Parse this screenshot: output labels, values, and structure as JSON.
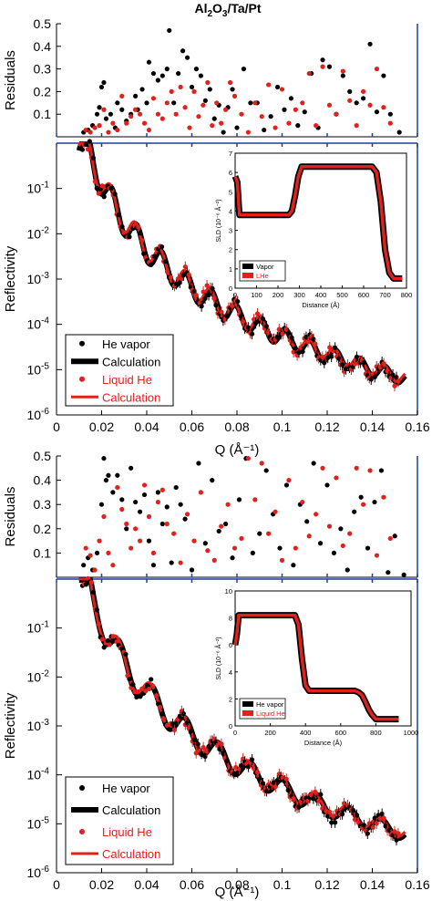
{
  "title_main": "Al",
  "title_sub1": "2",
  "title_mid": "O",
  "title_sub2": "3",
  "title_tail": "/Ta/Pt",
  "colors": {
    "black": "#000000",
    "red": "#e0211c",
    "axis_blue": "#1f3f9a"
  },
  "chart_data": [
    {
      "type": "scatter",
      "id": "top-residuals",
      "ylabel": "Residuals",
      "xlim": [
        0,
        0.16
      ],
      "ylim": [
        0,
        0.5
      ],
      "yticks": [
        {
          "v": 0.1,
          "label": "0.1"
        },
        {
          "v": 0.2,
          "label": "0.2"
        },
        {
          "v": 0.3,
          "label": "0.3"
        },
        {
          "v": 0.4,
          "label": "0.4"
        },
        {
          "v": 0.5,
          "label": "0.5"
        }
      ],
      "series": [
        {
          "color": "black",
          "x": [
            0.012,
            0.014,
            0.016,
            0.018,
            0.019,
            0.02,
            0.021,
            0.022,
            0.024,
            0.026,
            0.027,
            0.029,
            0.031,
            0.033,
            0.035,
            0.036,
            0.038,
            0.04,
            0.041,
            0.043,
            0.045,
            0.047,
            0.049,
            0.05,
            0.052,
            0.054,
            0.056,
            0.058,
            0.06,
            0.062,
            0.064,
            0.066,
            0.068,
            0.07,
            0.072,
            0.074,
            0.076,
            0.078,
            0.08,
            0.083,
            0.086,
            0.089,
            0.092,
            0.095,
            0.098,
            0.101,
            0.104,
            0.107,
            0.11,
            0.113,
            0.116,
            0.118,
            0.121,
            0.124,
            0.127,
            0.13,
            0.133,
            0.136,
            0.139,
            0.142,
            0.145,
            0.148,
            0.152
          ],
          "y": [
            0.02,
            0.03,
            0.05,
            0.1,
            0.13,
            0.22,
            0.24,
            0.08,
            0.1,
            0.04,
            0.15,
            0.12,
            0.07,
            0.1,
            0.18,
            0.12,
            0.21,
            0.15,
            0.33,
            0.28,
            0.25,
            0.27,
            0.3,
            0.47,
            0.15,
            0.28,
            0.38,
            0.35,
            0.22,
            0.3,
            0.27,
            0.16,
            0.21,
            0.08,
            0.14,
            0.02,
            0.13,
            0.21,
            0.04,
            0.3,
            0.15,
            0.15,
            0.03,
            0.09,
            0.22,
            0.12,
            0.17,
            0.05,
            0.11,
            0.28,
            0.04,
            0.34,
            0.31,
            0.1,
            0.27,
            0.2,
            0.15,
            0.17,
            0.41,
            0.11,
            0.27,
            0.1,
            0.02
          ]
        },
        {
          "color": "red",
          "x": [
            0.013,
            0.015,
            0.017,
            0.019,
            0.021,
            0.023,
            0.025,
            0.027,
            0.029,
            0.031,
            0.033,
            0.035,
            0.037,
            0.039,
            0.041,
            0.043,
            0.045,
            0.047,
            0.049,
            0.051,
            0.053,
            0.055,
            0.057,
            0.059,
            0.061,
            0.063,
            0.065,
            0.067,
            0.069,
            0.071,
            0.073,
            0.075,
            0.077,
            0.079,
            0.082,
            0.085,
            0.088,
            0.091,
            0.094,
            0.097,
            0.1,
            0.103,
            0.106,
            0.109,
            0.112,
            0.115,
            0.118,
            0.121,
            0.124,
            0.127,
            0.13,
            0.133,
            0.136,
            0.139,
            0.142,
            0.145,
            0.148
          ],
          "y": [
            0.03,
            0.02,
            0.04,
            0.05,
            0.12,
            0.02,
            0.06,
            0.03,
            0.18,
            0.06,
            0.09,
            0.12,
            0.1,
            0.06,
            0.03,
            0.17,
            0.1,
            0.08,
            0.15,
            0.2,
            0.1,
            0.22,
            0.13,
            0.04,
            0.2,
            0.09,
            0.14,
            0.24,
            0.05,
            0.15,
            0.06,
            0.12,
            0.24,
            0.18,
            0.1,
            0.02,
            0.15,
            0.09,
            0.23,
            0.04,
            0.21,
            0.06,
            0.12,
            0.15,
            0.28,
            0.05,
            0.31,
            0.14,
            0.1,
            0.29,
            0.16,
            0.05,
            0.2,
            0.14,
            0.3,
            0.13,
            0.06
          ]
        }
      ]
    },
    {
      "type": "line",
      "id": "top-reflectivity",
      "xlabel": "Q (Å⁻¹)",
      "ylabel": "Reflectivity",
      "xlim": [
        0,
        0.16
      ],
      "ylim_log": [
        -6,
        0
      ],
      "xticks": [
        "0",
        "0.02",
        "0.04",
        "0.06",
        "0.08",
        "0.1",
        "0.12",
        "0.14",
        "0.16"
      ],
      "yticks": [
        {
          "exp": -1,
          "label": "10",
          "sup": "-1"
        },
        {
          "exp": -2,
          "label": "10",
          "sup": "-2"
        },
        {
          "exp": -3,
          "label": "10",
          "sup": "-3"
        },
        {
          "exp": -4,
          "label": "10",
          "sup": "-4"
        },
        {
          "exp": -5,
          "label": "10",
          "sup": "-5"
        },
        {
          "exp": -6,
          "label": "10",
          "sup": "-6"
        }
      ],
      "legend": [
        "He vapor",
        "Calculation",
        "Liquid He",
        "Calculation"
      ],
      "legend_position": "bottom-left",
      "fringe_period": 0.011,
      "inset": {
        "xlabel": "Distance (Å)",
        "ylabel": "SLD (10⁻⁶ Å⁻²)",
        "xlim": [
          0,
          800
        ],
        "ylim": [
          0,
          7
        ],
        "xticks": [
          "0",
          "100",
          "200",
          "300",
          "400",
          "500",
          "600",
          "700",
          "800"
        ],
        "yticks": [
          "0",
          "1",
          "2",
          "3",
          "4",
          "5",
          "6",
          "7"
        ],
        "legend": [
          "Vapor",
          "LHe"
        ],
        "profile_x": [
          0,
          10,
          20,
          250,
          265,
          280,
          295,
          310,
          640,
          660,
          680,
          700,
          720,
          740,
          780
        ],
        "profile_y": [
          5.8,
          5.5,
          3.8,
          3.8,
          4.0,
          4.8,
          5.8,
          6.3,
          6.3,
          6.0,
          4.5,
          2.0,
          0.8,
          0.5,
          0.5
        ]
      }
    },
    {
      "type": "scatter",
      "id": "bottom-residuals",
      "ylabel": "Residuals",
      "xlim": [
        0,
        0.16
      ],
      "ylim": [
        0,
        0.5
      ],
      "yticks": [
        {
          "v": 0.1,
          "label": "0.1"
        },
        {
          "v": 0.2,
          "label": "0.2"
        },
        {
          "v": 0.3,
          "label": "0.3"
        },
        {
          "v": 0.4,
          "label": "0.4"
        },
        {
          "v": 0.5,
          "label": "0.5"
        }
      ],
      "series": [
        {
          "color": "black",
          "x": [
            0.012,
            0.014,
            0.016,
            0.018,
            0.02,
            0.021,
            0.022,
            0.023,
            0.025,
            0.027,
            0.029,
            0.031,
            0.033,
            0.035,
            0.037,
            0.039,
            0.041,
            0.043,
            0.045,
            0.047,
            0.049,
            0.051,
            0.053,
            0.055,
            0.057,
            0.06,
            0.063,
            0.066,
            0.069,
            0.072,
            0.075,
            0.078,
            0.081,
            0.084,
            0.087,
            0.09,
            0.093,
            0.096,
            0.099,
            0.102,
            0.105,
            0.108,
            0.111,
            0.114,
            0.117,
            0.12,
            0.123,
            0.126,
            0.129,
            0.132,
            0.135,
            0.138,
            0.141,
            0.144,
            0.147,
            0.15,
            0.154
          ],
          "y": [
            0.05,
            0.08,
            0.03,
            0.1,
            0.3,
            0.49,
            0.4,
            0.42,
            0.35,
            0.42,
            0.32,
            0.2,
            0.45,
            0.31,
            0.27,
            0.34,
            0.15,
            0.05,
            0.35,
            0.22,
            0.29,
            0.06,
            0.37,
            0.3,
            0.24,
            0.03,
            0.47,
            0.14,
            0.4,
            0.19,
            0.22,
            0.08,
            0.32,
            0.49,
            0.1,
            0.18,
            0.44,
            0.26,
            0.12,
            0.38,
            0.05,
            0.3,
            0.23,
            0.47,
            0.14,
            0.38,
            0.1,
            0.2,
            0.03,
            0.27,
            0.33,
            0.12,
            0.31,
            0.44,
            0.02,
            0.17,
            0.01
          ]
        },
        {
          "color": "red",
          "x": [
            0.013,
            0.015,
            0.017,
            0.019,
            0.021,
            0.023,
            0.025,
            0.027,
            0.029,
            0.031,
            0.033,
            0.035,
            0.037,
            0.039,
            0.041,
            0.043,
            0.045,
            0.047,
            0.049,
            0.052,
            0.055,
            0.058,
            0.061,
            0.064,
            0.067,
            0.07,
            0.073,
            0.076,
            0.079,
            0.082,
            0.085,
            0.088,
            0.091,
            0.094,
            0.097,
            0.1,
            0.103,
            0.106,
            0.109,
            0.112,
            0.115,
            0.118,
            0.121,
            0.124,
            0.127,
            0.13,
            0.133,
            0.136,
            0.139,
            0.142,
            0.145,
            0.148
          ],
          "y": [
            0.12,
            0.09,
            0.03,
            0.15,
            0.25,
            0.1,
            0.05,
            0.37,
            0.28,
            0.22,
            0.12,
            0.2,
            0.15,
            0.38,
            0.25,
            0.1,
            0.31,
            0.36,
            0.22,
            0.18,
            0.06,
            0.26,
            0.15,
            0.35,
            0.11,
            0.07,
            0.21,
            0.3,
            0.12,
            0.16,
            0.49,
            0.32,
            0.47,
            0.18,
            0.27,
            0.07,
            0.4,
            0.12,
            0.31,
            0.17,
            0.26,
            0.45,
            0.21,
            0.41,
            0.13,
            0.18,
            0.45,
            0.3,
            0.44,
            0.09,
            0.33,
            0.16
          ]
        }
      ]
    },
    {
      "type": "line",
      "id": "bottom-reflectivity",
      "xlabel": "Q (Å⁻¹)",
      "ylabel": "Reflectivity",
      "xlim": [
        0,
        0.16
      ],
      "ylim_log": [
        -6,
        0
      ],
      "xticks": [
        "0",
        "0.02",
        "0.04",
        "0.06",
        "0.08",
        "0.1",
        "0.12",
        "0.14",
        "0.16"
      ],
      "yticks": [
        {
          "exp": -1,
          "label": "10",
          "sup": "-1"
        },
        {
          "exp": -2,
          "label": "10",
          "sup": "-2"
        },
        {
          "exp": -3,
          "label": "10",
          "sup": "-3"
        },
        {
          "exp": -4,
          "label": "10",
          "sup": "-4"
        },
        {
          "exp": -5,
          "label": "10",
          "sup": "-5"
        },
        {
          "exp": -6,
          "label": "10",
          "sup": "-6"
        }
      ],
      "legend": [
        "He vapor",
        "Calculation",
        "Liquid He",
        "Calculation"
      ],
      "legend_position": "bottom-left",
      "fringe_period": 0.0145,
      "inset": {
        "xlabel": "Distance (Å)",
        "ylabel": "SLD (10⁻⁶ Å⁻²)",
        "xlim": [
          0,
          1000
        ],
        "ylim": [
          0,
          10
        ],
        "xticks": [
          "0",
          "200",
          "400",
          "600",
          "800",
          "1000"
        ],
        "yticks": [
          "0",
          "2",
          "4",
          "6",
          "8",
          "10"
        ],
        "legend": [
          "He vapor",
          "Liquid He"
        ],
        "profile_x": [
          0,
          10,
          20,
          340,
          360,
          380,
          400,
          420,
          680,
          700,
          720,
          740,
          760,
          780,
          800,
          930
        ],
        "profile_y": [
          6.0,
          6.8,
          8.2,
          8.2,
          7.5,
          5.0,
          3.0,
          2.6,
          2.6,
          2.5,
          2.3,
          1.8,
          1.2,
          0.8,
          0.5,
          0.5
        ]
      }
    }
  ]
}
